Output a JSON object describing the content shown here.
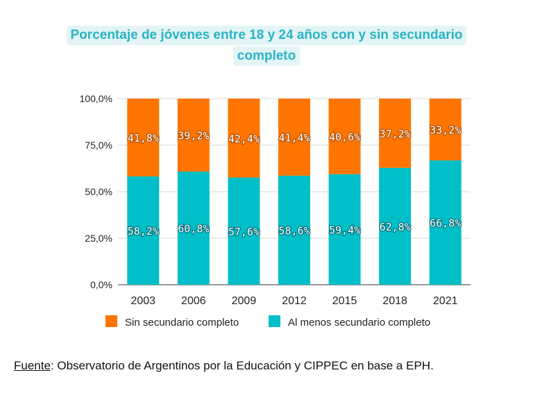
{
  "title_line1": "Porcentaje de jóvenes entre 18 y 24 años con y sin secundario",
  "title_line2": "completo",
  "source_label": "Fuente",
  "source_text": ": Observatorio de Argentinos por la Educación y CIPPEC en base a EPH.",
  "colors": {
    "sin": "#ff7500",
    "con": "#00bfc8",
    "title": "#29b3c4",
    "title_bg": "#e3f4f6"
  },
  "chart_data": {
    "type": "bar",
    "stacked": true,
    "title": "Porcentaje de jóvenes entre 18 y 24 años con y sin secundario completo",
    "categories": [
      "2003",
      "2006",
      "2009",
      "2012",
      "2015",
      "2018",
      "2021"
    ],
    "series": [
      {
        "name": "Al menos secundario completo",
        "values": [
          58.2,
          60.8,
          57.6,
          58.6,
          59.4,
          62.8,
          66.8
        ],
        "labels": [
          "58,2%",
          "60,8%",
          "57,6%",
          "58,6%",
          "59,4%",
          "62,8%",
          "66,8%"
        ]
      },
      {
        "name": "Sin secundario completo",
        "values": [
          41.8,
          39.2,
          42.4,
          41.4,
          40.6,
          37.2,
          33.2
        ],
        "labels": [
          "41,8%",
          "39,2%",
          "42,4%",
          "41,4%",
          "40,6%",
          "37,2%",
          "33,2%"
        ]
      }
    ],
    "yticks": [
      0,
      25,
      50,
      75,
      100
    ],
    "ytick_labels": [
      "0,0%",
      "25,0%",
      "50,0%",
      "75,0%",
      "100,0%"
    ],
    "ylim": [
      0,
      100
    ],
    "legend": [
      "Sin secundario completo",
      "Al menos secundario completo"
    ],
    "legend_position": "bottom"
  }
}
